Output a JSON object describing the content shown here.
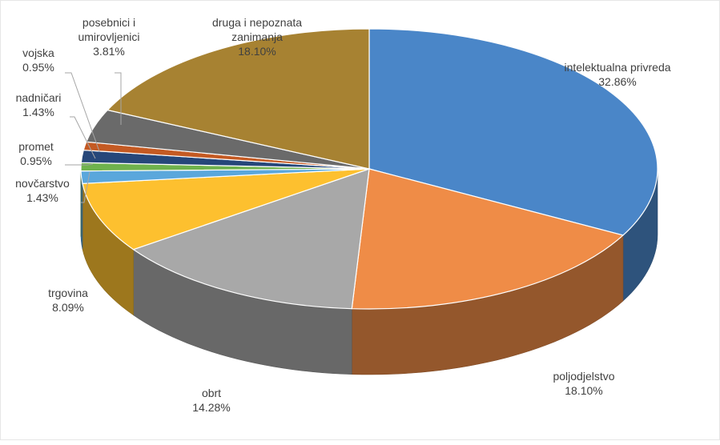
{
  "chart_data": {
    "type": "pie",
    "style": "3d",
    "series": [
      {
        "labels": [
          "intelektualna privreda",
          "poljodjelstvo",
          "obrt",
          "trgovina",
          "novčarstvo",
          "promet",
          "nadničari",
          "vojska",
          "posebnici i umirovljenici",
          "druga i nepoznata zanimanja"
        ],
        "values": [
          32.86,
          18.1,
          14.28,
          8.09,
          1.43,
          0.95,
          1.43,
          0.95,
          3.81,
          18.1
        ],
        "value_labels": [
          "32.86%",
          "18.10%",
          "14.28%",
          "8.09%",
          "1.43%",
          "0.95%",
          "1.43%",
          "0.95%",
          "3.81%",
          "18.10%"
        ],
        "colors": [
          "#4a86c8",
          "#ef8c47",
          "#a8a8a8",
          "#fdc02f",
          "#5aa7dc",
          "#6fb24d",
          "#26477a",
          "#c45a23",
          "#6a6a6a",
          "#a78232"
        ]
      }
    ],
    "legend": "none",
    "data_labels": "outside with leader lines"
  }
}
